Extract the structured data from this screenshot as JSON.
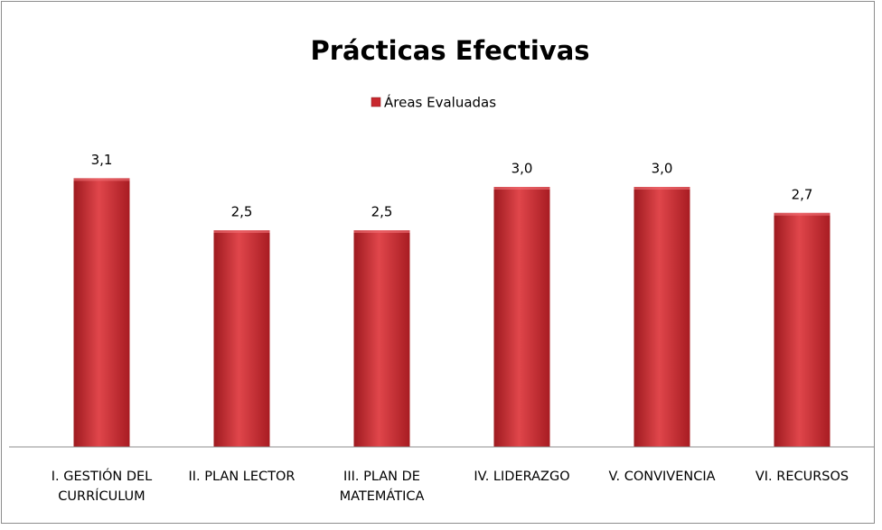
{
  "chart_data": {
    "type": "bar",
    "title": "Prácticas Efectivas",
    "categories": [
      "I. GESTIÓN DEL CURRÍCULUM",
      "II. PLAN LECTOR",
      "III. PLAN DE MATEMÁTICA",
      "IV. LIDERAZGO",
      "V. CONVIVENCIA",
      "VI. RECURSOS"
    ],
    "series": [
      {
        "name": "Áreas Evaluadas",
        "color": "#c8282e",
        "values": [
          3.1,
          2.5,
          2.5,
          3.0,
          3.0,
          2.7
        ],
        "value_labels": [
          "3,1",
          "2,5",
          "2,5",
          "3,0",
          "3,0",
          "2,7"
        ]
      }
    ],
    "ylim": [
      0,
      3.5
    ],
    "legend": "top"
  }
}
